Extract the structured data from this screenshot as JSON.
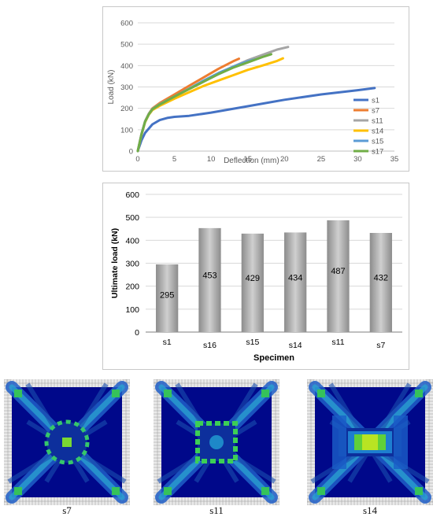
{
  "line_chart": {
    "ylabel": "Load (kN)",
    "xlabel": "Deflection (mm)",
    "x_ticks": [
      "0",
      "5",
      "10",
      "15",
      "20",
      "25",
      "30",
      "35"
    ],
    "y_ticks": [
      "0",
      "100",
      "200",
      "300",
      "400",
      "500",
      "600"
    ],
    "legend": [
      "s1",
      "s7",
      "s11",
      "s14",
      "s15",
      "s17"
    ]
  },
  "bar_chart": {
    "ylabel": "Ultimate load (kN)",
    "xlabel": "Specimen",
    "categories": [
      "s1",
      "s16",
      "s15",
      "s14",
      "s11",
      "s7"
    ],
    "values_text": [
      "295",
      "453",
      "429",
      "434",
      "487",
      "432"
    ],
    "y_ticks": [
      "0",
      "100",
      "200",
      "300",
      "400",
      "500",
      "600"
    ]
  },
  "fe_panels": {
    "label_a": "s7",
    "label_b": "s11",
    "label_c": "s14"
  },
  "chart_data": [
    {
      "type": "line",
      "xlabel": "Deflection (mm)",
      "ylabel": "Load (kN)",
      "xlim": [
        0,
        35
      ],
      "ylim": [
        0,
        600
      ],
      "grid": true,
      "legend_position": "right",
      "series": [
        {
          "name": "s1",
          "color": "#4472c4",
          "points": [
            [
              0,
              0
            ],
            [
              0.5,
              50
            ],
            [
              1,
              85
            ],
            [
              2,
              125
            ],
            [
              3,
              145
            ],
            [
              4,
              155
            ],
            [
              5,
              160
            ],
            [
              7,
              165
            ],
            [
              10,
              180
            ],
            [
              15,
              210
            ],
            [
              20,
              240
            ],
            [
              25,
              265
            ],
            [
              30,
              285
            ],
            [
              32.3,
              295
            ]
          ]
        },
        {
          "name": "s7",
          "color": "#ed7d31",
          "points": [
            [
              0,
              0
            ],
            [
              0.5,
              80
            ],
            [
              1,
              140
            ],
            [
              1.5,
              175
            ],
            [
              2,
              200
            ],
            [
              3,
              225
            ],
            [
              5,
              265
            ],
            [
              7,
              305
            ],
            [
              9,
              345
            ],
            [
              11,
              385
            ],
            [
              13,
              420
            ],
            [
              13.8,
              432
            ]
          ]
        },
        {
          "name": "s11",
          "color": "#a5a5a5",
          "points": [
            [
              0,
              0
            ],
            [
              0.5,
              80
            ],
            [
              1,
              140
            ],
            [
              1.5,
              175
            ],
            [
              2,
              198
            ],
            [
              3,
              220
            ],
            [
              5,
              255
            ],
            [
              7,
              290
            ],
            [
              9,
              325
            ],
            [
              11,
              360
            ],
            [
              13,
              395
            ],
            [
              15,
              425
            ],
            [
              17,
              450
            ],
            [
              19,
              475
            ],
            [
              20.5,
              487
            ]
          ]
        },
        {
          "name": "s14",
          "color": "#ffc000",
          "points": [
            [
              0,
              0
            ],
            [
              0.5,
              75
            ],
            [
              1,
              135
            ],
            [
              1.5,
              170
            ],
            [
              2,
              192
            ],
            [
              3,
              212
            ],
            [
              5,
              245
            ],
            [
              7,
              275
            ],
            [
              9,
              305
            ],
            [
              11,
              330
            ],
            [
              13,
              355
            ],
            [
              15,
              380
            ],
            [
              17,
              400
            ],
            [
              19,
              422
            ],
            [
              19.8,
              434
            ]
          ]
        },
        {
          "name": "s15",
          "color": "#5b9bd5",
          "points": [
            [
              0,
              0
            ],
            [
              0.5,
              78
            ],
            [
              1,
              138
            ],
            [
              1.5,
              172
            ],
            [
              2,
              196
            ],
            [
              3,
              218
            ],
            [
              5,
              255
            ],
            [
              7,
              292
            ],
            [
              9,
              330
            ],
            [
              11,
              365
            ],
            [
              13,
              395
            ],
            [
              15,
              420
            ],
            [
              16,
              429
            ]
          ]
        },
        {
          "name": "s17",
          "color": "#70ad47",
          "points": [
            [
              0,
              0
            ],
            [
              0.5,
              78
            ],
            [
              1,
              138
            ],
            [
              1.5,
              172
            ],
            [
              2,
              196
            ],
            [
              3,
              218
            ],
            [
              5,
              255
            ],
            [
              7,
              290
            ],
            [
              9,
              325
            ],
            [
              11,
              360
            ],
            [
              13,
              390
            ],
            [
              15,
              415
            ],
            [
              17,
              440
            ],
            [
              18.2,
              453
            ]
          ]
        }
      ]
    },
    {
      "type": "bar",
      "xlabel": "Specimen",
      "ylabel": "Ultimate load (kN)",
      "ylim": [
        0,
        600
      ],
      "grid": true,
      "categories": [
        "s1",
        "s16",
        "s15",
        "s14",
        "s11",
        "s7"
      ],
      "values": [
        295,
        453,
        429,
        434,
        487,
        432
      ]
    }
  ]
}
